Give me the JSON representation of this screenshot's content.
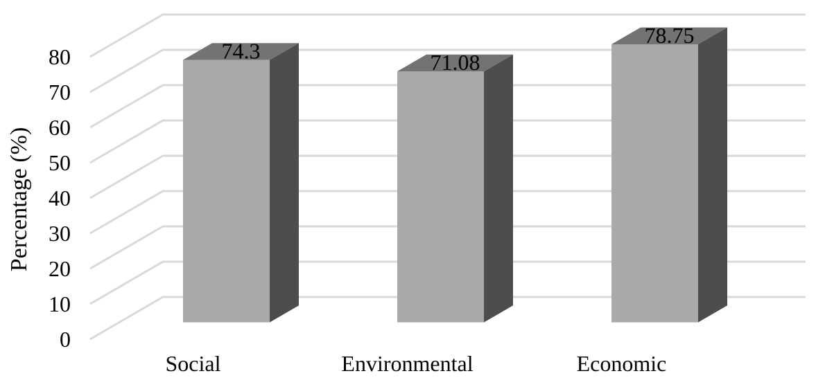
{
  "chart_data": {
    "type": "bar",
    "style": "3d-column",
    "title": "",
    "xlabel": "",
    "ylabel": "Percentage (%)",
    "ylim": [
      0,
      80
    ],
    "yticks": [
      "0",
      "10",
      "20",
      "30",
      "40",
      "50",
      "60",
      "70",
      "80"
    ],
    "categories": [
      "Social",
      "Environmental",
      "Economic"
    ],
    "values": [
      74.3,
      71.08,
      78.75
    ],
    "data_labels": [
      "74.3",
      "71.08",
      "78.75"
    ],
    "grid": true,
    "legend": "none",
    "colors": {
      "bar_front": "#a9a9a9",
      "bar_side": "#4d4d4d",
      "bar_top": "#737373",
      "gridline": "#d9d9d9"
    }
  }
}
